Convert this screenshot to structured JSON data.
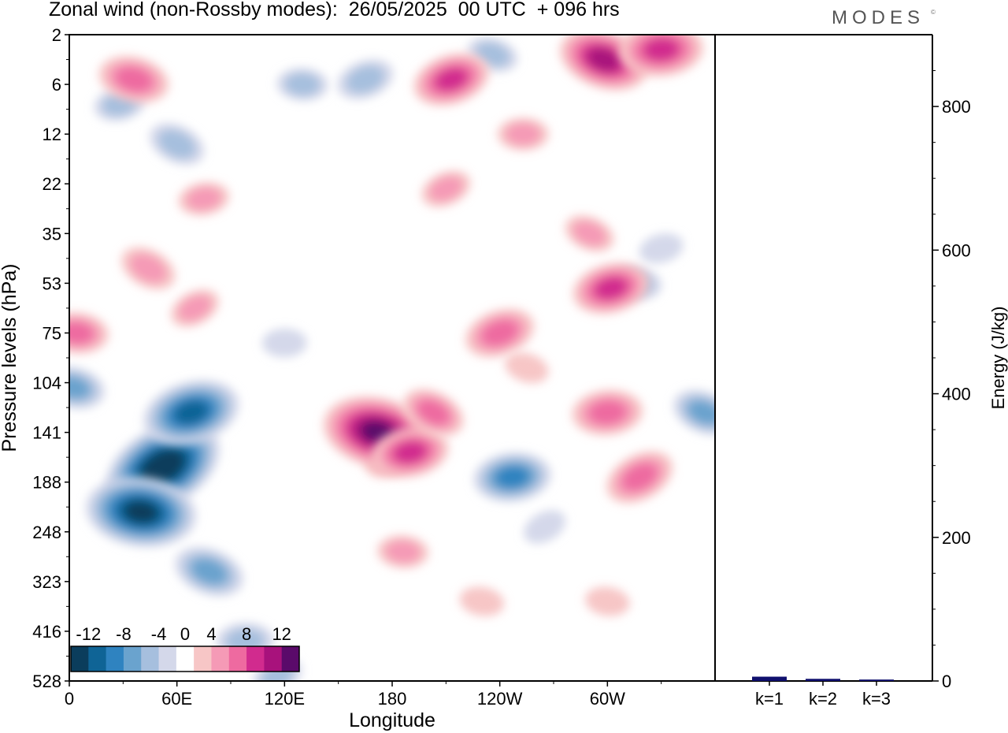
{
  "header": {
    "title": "Zonal wind (non-Rossby modes):  26/05/2025  00 UTC  + 096 hrs",
    "brand": "MODES",
    "brand_mark": "©"
  },
  "chart_data": [
    {
      "type": "heatmap",
      "title": "Zonal wind (non-Rossby modes):  26/05/2025  00 UTC  + 096 hrs",
      "xlabel": "Longitude",
      "ylabel": "Pressure levels (hPa)",
      "x_ticks": [
        "0",
        "60E",
        "120E",
        "180",
        "120W",
        "60W"
      ],
      "x_range": [
        0,
        360
      ],
      "y_ticks": [
        "2",
        "6",
        "12",
        "22",
        "35",
        "53",
        "75",
        "104",
        "141",
        "188",
        "248",
        "323",
        "416",
        "528"
      ],
      "colorbar": {
        "labels": [
          "-12",
          "-8",
          "-4",
          "0",
          "4",
          "8",
          "12"
        ],
        "colors": [
          "#0b3d5c",
          "#0f6496",
          "#2f83c0",
          "#6aa3ce",
          "#a6bfde",
          "#d4d8ea",
          "#ffffff",
          "#f7c6c6",
          "#f59ab6",
          "#ee6aa0",
          "#d12b8e",
          "#a8127c",
          "#5a0a6a"
        ]
      },
      "blobs": [
        {
          "lon": 52,
          "lev": 8.7,
          "value": -14
        },
        {
          "lon": 40,
          "lev": 9.6,
          "value": -12
        },
        {
          "lon": 68,
          "lev": 7.6,
          "value": -10
        },
        {
          "lon": 78,
          "lev": 10.8,
          "value": -6
        },
        {
          "lon": 98,
          "lev": 12.2,
          "value": -4
        },
        {
          "lon": 116,
          "lev": 12.9,
          "value": -3
        },
        {
          "lon": 2,
          "lev": 7.1,
          "value": -5
        },
        {
          "lon": 28,
          "lev": 1.4,
          "value": -3
        },
        {
          "lon": 60,
          "lev": 2.2,
          "value": -4
        },
        {
          "lon": 130,
          "lev": 1.0,
          "value": -3
        },
        {
          "lon": 165,
          "lev": 0.9,
          "value": -4
        },
        {
          "lon": 236,
          "lev": 0.4,
          "value": -3
        },
        {
          "lon": 247,
          "lev": 8.9,
          "value": -7
        },
        {
          "lon": 265,
          "lev": 9.9,
          "value": -2
        },
        {
          "lon": 316,
          "lev": 5.0,
          "value": -3
        },
        {
          "lon": 330,
          "lev": 4.3,
          "value": -2
        },
        {
          "lon": 354,
          "lev": 7.6,
          "value": -5
        },
        {
          "lon": 120,
          "lev": 6.2,
          "value": -2
        },
        {
          "lon": 180,
          "lev": 8.5,
          "value": 4
        },
        {
          "lon": 172,
          "lev": 8.0,
          "value": 12
        },
        {
          "lon": 190,
          "lev": 8.4,
          "value": 7
        },
        {
          "lon": 203,
          "lev": 7.6,
          "value": 5
        },
        {
          "lon": 186,
          "lev": 10.4,
          "value": 3
        },
        {
          "lon": 240,
          "lev": 6.0,
          "value": 6
        },
        {
          "lon": 255,
          "lev": 6.7,
          "value": 2
        },
        {
          "lon": 300,
          "lev": 7.6,
          "value": 6
        },
        {
          "lon": 318,
          "lev": 8.9,
          "value": 6
        },
        {
          "lon": 300,
          "lev": 11.4,
          "value": 2
        },
        {
          "lon": 302,
          "lev": 5.1,
          "value": 7
        },
        {
          "lon": 290,
          "lev": 4.0,
          "value": 3
        },
        {
          "lon": 253,
          "lev": 2.0,
          "value": 3
        },
        {
          "lon": 210,
          "lev": 3.1,
          "value": 3
        },
        {
          "lon": 36,
          "lev": 0.9,
          "value": 6
        },
        {
          "lon": 75,
          "lev": 3.3,
          "value": 3
        },
        {
          "lon": 44,
          "lev": 4.7,
          "value": 4
        },
        {
          "lon": 4,
          "lev": 6.0,
          "value": 5
        },
        {
          "lon": 213,
          "lev": 0.9,
          "value": 7
        },
        {
          "lon": 298,
          "lev": 0.5,
          "value": 9
        },
        {
          "lon": 330,
          "lev": 0.3,
          "value": 8
        },
        {
          "lon": 70,
          "lev": 5.5,
          "value": 3
        },
        {
          "lon": 230,
          "lev": 11.4,
          "value": 2
        }
      ]
    },
    {
      "type": "bar",
      "categories": [
        "k=1",
        "k=2",
        "k=3"
      ],
      "values": [
        6,
        3,
        2
      ],
      "ylabel": "Energy (J/kg)",
      "ylim": [
        0,
        900
      ],
      "y_ticks": [
        0,
        200,
        400,
        600,
        800
      ],
      "bar_color": "#10106e"
    }
  ]
}
